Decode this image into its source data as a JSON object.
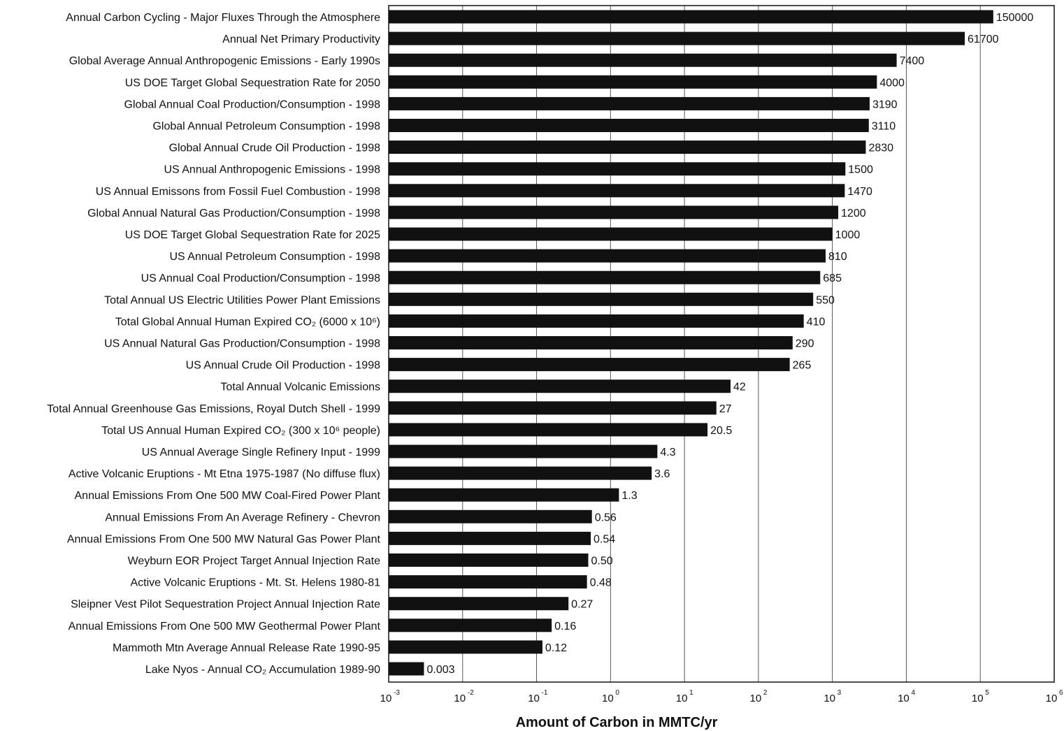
{
  "chart_data": {
    "type": "bar",
    "orientation": "horizontal",
    "x_scale": "log",
    "xlim": [
      0.001,
      1000000
    ],
    "xlabel": "Amount of Carbon in MMTC/yr",
    "grid": "vertical",
    "bar_color": "#111111",
    "xticks": [
      {
        "base": "10",
        "exp": "-3"
      },
      {
        "base": "10",
        "exp": "-2"
      },
      {
        "base": "10",
        "exp": "-1"
      },
      {
        "base": "10",
        "exp": "0"
      },
      {
        "base": "10",
        "exp": "1"
      },
      {
        "base": "10",
        "exp": "2"
      },
      {
        "base": "10",
        "exp": "3"
      },
      {
        "base": "10",
        "exp": "4"
      },
      {
        "base": "10",
        "exp": "5"
      },
      {
        "base": "10",
        "exp": "6"
      }
    ],
    "items": [
      {
        "label": "Annual Carbon Cycling  - Major Fluxes Through the Atmosphere",
        "value": 150000,
        "value_label": "150000"
      },
      {
        "label": "Annual Net Primary Productivity",
        "value": 61700,
        "value_label": "61700"
      },
      {
        "label": "Global Average Annual Anthropogenic Emissions - Early 1990s",
        "value": 7400,
        "value_label": "7400"
      },
      {
        "label": "US DOE Target Global Sequestration Rate for 2050",
        "value": 4000,
        "value_label": "4000"
      },
      {
        "label": "Global Annual Coal Production/Consumption - 1998",
        "value": 3190,
        "value_label": "3190"
      },
      {
        "label": "Global Annual Petroleum Consumption - 1998",
        "value": 3110,
        "value_label": "3110"
      },
      {
        "label": "Global Annual Crude Oil Production - 1998",
        "value": 2830,
        "value_label": "2830"
      },
      {
        "label": "US Annual Anthropogenic Emissions - 1998",
        "value": 1500,
        "value_label": "1500"
      },
      {
        "label": "US Annual Emissons from Fossil Fuel Combustion - 1998",
        "value": 1470,
        "value_label": "1470"
      },
      {
        "label": "Global Annual Natural Gas Production/Consumption - 1998",
        "value": 1200,
        "value_label": "1200"
      },
      {
        "label": "US DOE Target Global Sequestration Rate for 2025",
        "value": 1000,
        "value_label": "1000"
      },
      {
        "label": "US Annual Petroleum Consumption - 1998",
        "value": 810,
        "value_label": "810"
      },
      {
        "label": "US Annual Coal Production/Consumption - 1998",
        "value": 685,
        "value_label": "685"
      },
      {
        "label": "Total Annual US Electric Utilities Power Plant Emissions",
        "value": 550,
        "value_label": "550"
      },
      {
        "label": "Total Global Annual Human Expired CO₂ (6000 x 10⁶)",
        "value": 410,
        "value_label": "410"
      },
      {
        "label": "US Annual Natural Gas Production/Consumption - 1998",
        "value": 290,
        "value_label": "290"
      },
      {
        "label": "US Annual Crude Oil Production - 1998",
        "value": 265,
        "value_label": "265"
      },
      {
        "label": "Total Annual Volcanic Emissions",
        "value": 42,
        "value_label": "42"
      },
      {
        "label": "Total Annual Greenhouse Gas Emissions, Royal Dutch Shell - 1999",
        "value": 27,
        "value_label": "27"
      },
      {
        "label": "Total US Annual Human Expired CO₂ (300 x 10⁶ people)",
        "value": 20.5,
        "value_label": "20.5"
      },
      {
        "label": "US Annual Average Single Refinery Input - 1999",
        "value": 4.3,
        "value_label": "4.3"
      },
      {
        "label": "Active Volcanic Eruptions - Mt Etna 1975-1987 (No diffuse flux)",
        "value": 3.6,
        "value_label": "3.6"
      },
      {
        "label": "Annual Emissions From One 500 MW Coal-Fired Power Plant",
        "value": 1.3,
        "value_label": "1.3"
      },
      {
        "label": "Annual Emissions From An Average Refinery  - Chevron",
        "value": 0.56,
        "value_label": "0.56"
      },
      {
        "label": "Annual Emissions From One 500 MW Natural Gas Power Plant",
        "value": 0.54,
        "value_label": "0.54"
      },
      {
        "label": "Weyburn EOR Project Target Annual Injection Rate",
        "value": 0.5,
        "value_label": "0.50"
      },
      {
        "label": "Active Volcanic Eruptions - Mt. St. Helens 1980-81",
        "value": 0.48,
        "value_label": "0.48"
      },
      {
        "label": "Sleipner Vest Pilot Sequestration Project Annual Injection Rate",
        "value": 0.27,
        "value_label": "0.27"
      },
      {
        "label": "Annual Emissions From One 500 MW Geothermal Power Plant",
        "value": 0.16,
        "value_label": "0.16"
      },
      {
        "label": "Mammoth Mtn Average Annual Release Rate 1990-95",
        "value": 0.12,
        "value_label": "0.12"
      },
      {
        "label": "Lake Nyos - Annual CO₂ Accumulation 1989-90",
        "value": 0.003,
        "value_label": "0.003"
      }
    ]
  }
}
